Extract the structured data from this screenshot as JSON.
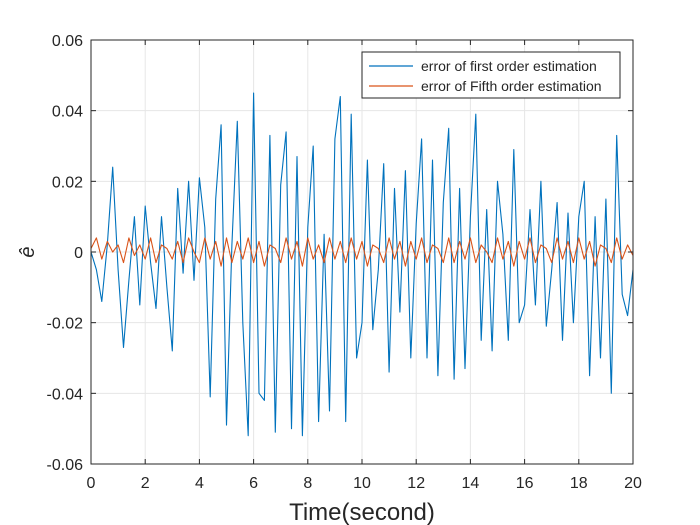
{
  "chart_data": {
    "type": "line",
    "title": "",
    "xlabel": "Time(second)",
    "ylabel": "ê",
    "xlim": [
      0,
      20
    ],
    "ylim": [
      -0.06,
      0.06
    ],
    "x_ticks": [
      0,
      2,
      4,
      6,
      8,
      10,
      12,
      14,
      16,
      18,
      20
    ],
    "x_tick_labels": [
      "0",
      "2",
      "4",
      "6",
      "8",
      "10",
      "12",
      "14",
      "16",
      "18",
      "20"
    ],
    "y_ticks": [
      -0.06,
      -0.04,
      -0.02,
      0,
      0.02,
      0.04,
      0.06
    ],
    "y_tick_labels": [
      "-0.06",
      "-0.04",
      "-0.02",
      "0",
      "0.02",
      "0.04",
      "0.06"
    ],
    "grid": true,
    "legend_position": "top-right",
    "series": [
      {
        "name": "error of first order estimation",
        "color": "#0072BD",
        "x": [
          0,
          0.2,
          0.4,
          0.6,
          0.8,
          1.0,
          1.2,
          1.4,
          1.6,
          1.8,
          2.0,
          2.2,
          2.4,
          2.6,
          2.8,
          3.0,
          3.2,
          3.4,
          3.6,
          3.8,
          4.0,
          4.2,
          4.4,
          4.6,
          4.8,
          5.0,
          5.2,
          5.4,
          5.6,
          5.8,
          6.0,
          6.2,
          6.4,
          6.6,
          6.8,
          7.0,
          7.2,
          7.4,
          7.6,
          7.8,
          8.0,
          8.2,
          8.4,
          8.6,
          8.8,
          9.0,
          9.2,
          9.4,
          9.6,
          9.8,
          10.0,
          10.2,
          10.4,
          10.6,
          10.8,
          11.0,
          11.2,
          11.4,
          11.6,
          11.8,
          12.0,
          12.2,
          12.4,
          12.6,
          12.8,
          13.0,
          13.2,
          13.4,
          13.6,
          13.8,
          14.0,
          14.2,
          14.4,
          14.6,
          14.8,
          15.0,
          15.2,
          15.4,
          15.6,
          15.8,
          16.0,
          16.2,
          16.4,
          16.6,
          16.8,
          17.0,
          17.2,
          17.4,
          17.6,
          17.8,
          18.0,
          18.2,
          18.4,
          18.6,
          18.8,
          19.0,
          19.2,
          19.4,
          19.6,
          19.8,
          20.0
        ],
        "values": [
          0.0,
          -0.005,
          -0.014,
          0.002,
          0.024,
          -0.005,
          -0.027,
          -0.008,
          0.01,
          -0.015,
          0.013,
          -0.003,
          -0.016,
          0.01,
          -0.01,
          -0.028,
          0.018,
          -0.006,
          0.02,
          -0.008,
          0.021,
          0.007,
          -0.041,
          0.015,
          0.036,
          -0.049,
          0.002,
          0.037,
          -0.02,
          -0.052,
          0.045,
          -0.04,
          -0.042,
          0.033,
          -0.051,
          0.019,
          0.034,
          -0.05,
          0.027,
          -0.052,
          0.007,
          0.03,
          -0.048,
          0.005,
          -0.045,
          0.032,
          0.044,
          -0.048,
          0.039,
          -0.03,
          -0.02,
          0.026,
          -0.022,
          -0.005,
          0.025,
          -0.034,
          0.018,
          -0.017,
          0.023,
          -0.03,
          0.008,
          0.032,
          -0.03,
          0.026,
          -0.035,
          0.014,
          0.035,
          -0.036,
          0.018,
          -0.033,
          0.01,
          0.039,
          -0.025,
          0.012,
          -0.028,
          0.02,
          0.005,
          -0.025,
          0.029,
          -0.02,
          -0.015,
          0.012,
          -0.015,
          0.02,
          -0.021,
          -0.005,
          0.014,
          -0.025,
          0.011,
          -0.02,
          0.01,
          0.02,
          -0.035,
          0.01,
          -0.03,
          0.015,
          -0.04,
          0.033,
          -0.012,
          -0.018,
          -0.005
        ]
      },
      {
        "name": "error of Fifth order estimation",
        "color": "#D95319",
        "x": [
          0,
          0.2,
          0.4,
          0.6,
          0.8,
          1.0,
          1.2,
          1.4,
          1.6,
          1.8,
          2.0,
          2.2,
          2.4,
          2.6,
          2.8,
          3.0,
          3.2,
          3.4,
          3.6,
          3.8,
          4.0,
          4.2,
          4.4,
          4.6,
          4.8,
          5.0,
          5.2,
          5.4,
          5.6,
          5.8,
          6.0,
          6.2,
          6.4,
          6.6,
          6.8,
          7.0,
          7.2,
          7.4,
          7.6,
          7.8,
          8.0,
          8.2,
          8.4,
          8.6,
          8.8,
          9.0,
          9.2,
          9.4,
          9.6,
          9.8,
          10.0,
          10.2,
          10.4,
          10.6,
          10.8,
          11.0,
          11.2,
          11.4,
          11.6,
          11.8,
          12.0,
          12.2,
          12.4,
          12.6,
          12.8,
          13.0,
          13.2,
          13.4,
          13.6,
          13.8,
          14.0,
          14.2,
          14.4,
          14.6,
          14.8,
          15.0,
          15.2,
          15.4,
          15.6,
          15.8,
          16.0,
          16.2,
          16.4,
          16.6,
          16.8,
          17.0,
          17.2,
          17.4,
          17.6,
          17.8,
          18.0,
          18.2,
          18.4,
          18.6,
          18.8,
          19.0,
          19.2,
          19.4,
          19.6,
          19.8,
          20.0
        ],
        "values": [
          0.001,
          0.004,
          -0.002,
          0.003,
          0.0,
          0.002,
          -0.003,
          0.004,
          -0.001,
          0.002,
          -0.002,
          0.004,
          -0.003,
          0.002,
          0.001,
          -0.002,
          0.003,
          -0.003,
          0.004,
          0.0,
          -0.003,
          0.004,
          -0.002,
          0.003,
          -0.004,
          0.004,
          -0.003,
          0.003,
          -0.002,
          0.004,
          -0.003,
          0.003,
          -0.004,
          0.002,
          0.001,
          -0.003,
          0.004,
          -0.002,
          0.003,
          -0.004,
          0.004,
          -0.002,
          0.002,
          -0.003,
          0.004,
          -0.002,
          0.003,
          -0.003,
          0.004,
          -0.002,
          0.003,
          -0.004,
          0.002,
          0.001,
          -0.003,
          0.004,
          -0.002,
          0.003,
          -0.004,
          0.003,
          -0.002,
          0.004,
          -0.003,
          0.002,
          0.001,
          -0.003,
          0.004,
          -0.003,
          0.003,
          -0.002,
          0.004,
          -0.003,
          0.002,
          0.0,
          -0.003,
          0.004,
          -0.002,
          0.003,
          -0.004,
          0.003,
          -0.002,
          0.004,
          -0.003,
          0.002,
          0.001,
          -0.003,
          0.004,
          -0.002,
          0.003,
          -0.003,
          0.004,
          -0.002,
          0.003,
          -0.004,
          0.002,
          0.001,
          -0.003,
          0.004,
          -0.002,
          0.002,
          -0.001
        ]
      }
    ]
  }
}
